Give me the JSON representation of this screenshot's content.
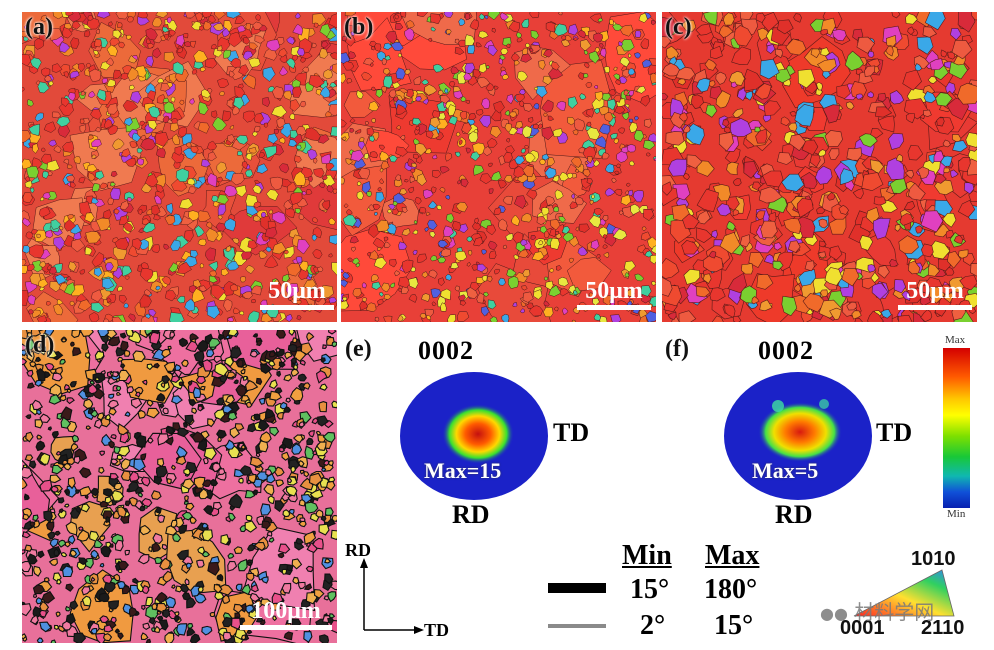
{
  "panels": {
    "a": {
      "label": "(a)",
      "scale": "50μm"
    },
    "b": {
      "label": "(b)",
      "scale": "50μm"
    },
    "c": {
      "label": "(c)",
      "scale": "50μm"
    },
    "d": {
      "label": "(d)",
      "scale": "100μm"
    }
  },
  "pole_figures": [
    {
      "label": "(e)",
      "plane": "0002",
      "td": "TD",
      "rd": "RD",
      "max_text": "Max=15"
    },
    {
      "label": "(f)",
      "plane": "0002",
      "td": "TD",
      "rd": "RD",
      "max_text": "Max=5"
    }
  ],
  "colorbar": {
    "max": "Max",
    "min": "Min"
  },
  "axes": {
    "rd": "RD",
    "td": "TD"
  },
  "boundary_legend": {
    "min_header": "Min",
    "max_header": "Max",
    "high_angle": {
      "min": "15°",
      "max": "180°",
      "color": "#000000"
    },
    "low_angle": {
      "min": "2°",
      "max": "15°",
      "color": "#8a8a8a"
    }
  },
  "ipf_key": {
    "top": "1010",
    "left": "0001",
    "right": "2110"
  },
  "watermark": "材料学网",
  "colors": {
    "red": "#e8362e",
    "pink": "#e8508a",
    "blue": "#1b22c8"
  }
}
